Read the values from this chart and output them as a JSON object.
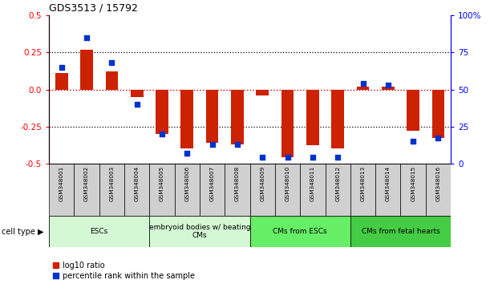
{
  "title": "GDS3513 / 15792",
  "samples": [
    "GSM348001",
    "GSM348002",
    "GSM348003",
    "GSM348004",
    "GSM348005",
    "GSM348006",
    "GSM348007",
    "GSM348008",
    "GSM348009",
    "GSM348010",
    "GSM348011",
    "GSM348012",
    "GSM348013",
    "GSM348014",
    "GSM348015",
    "GSM348016"
  ],
  "log10_ratio": [
    0.11,
    0.27,
    0.12,
    -0.05,
    -0.3,
    -0.4,
    -0.36,
    -0.37,
    -0.04,
    -0.46,
    -0.38,
    -0.4,
    0.02,
    0.02,
    -0.28,
    -0.33
  ],
  "percentile_rank": [
    65,
    85,
    68,
    40,
    20,
    7,
    13,
    13,
    4,
    4,
    4,
    4,
    54,
    53,
    15,
    17
  ],
  "ylim_left": [
    -0.5,
    0.5
  ],
  "ylim_right": [
    0,
    100
  ],
  "yticks_left": [
    -0.5,
    -0.25,
    0.0,
    0.25,
    0.5
  ],
  "yticks_right": [
    0,
    25,
    50,
    75,
    100
  ],
  "cell_groups": [
    {
      "label": "ESCs",
      "start": 0,
      "end": 3,
      "color": "#d4f7d4"
    },
    {
      "label": "embryoid bodies w/ beating\nCMs",
      "start": 4,
      "end": 7,
      "color": "#d4f7d4"
    },
    {
      "label": "CMs from ESCs",
      "start": 8,
      "end": 11,
      "color": "#66ee66"
    },
    {
      "label": "CMs from fetal hearts",
      "start": 12,
      "end": 15,
      "color": "#44cc44"
    }
  ],
  "bar_color_red": "#cc2200",
  "bar_color_blue": "#0033cc",
  "zero_line_color": "#cc0000",
  "sample_box_color": "#d0d0d0",
  "cell_type_label": "cell type ▶",
  "legend_red": "log10 ratio",
  "legend_blue": "percentile rank within the sample",
  "bar_width": 0.5,
  "blue_marker_size": 16,
  "fig_width": 6.11,
  "fig_height": 3.54,
  "dpi": 100
}
